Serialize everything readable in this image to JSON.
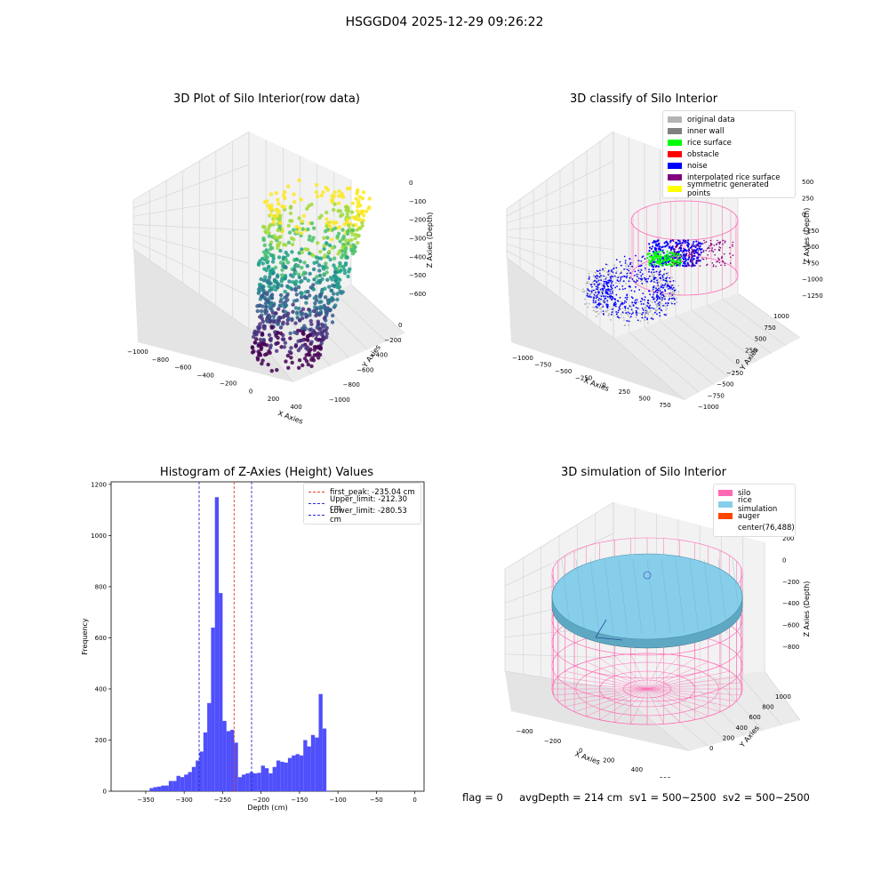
{
  "suptitle": "HSGGD04 2025-12-29 09:26:22",
  "status_text": "flag = 0     avgDepth = 214 cm  sv1 = 500~2500  sv2 = 500~2500",
  "colors": {
    "hist_bar": "#4f4ffb",
    "first_peak": "#e8392b",
    "limit": "#2b2bd6",
    "original": "#b3b3b3",
    "inner_wall": "#808080",
    "rice_surface": "#00ff00",
    "obstacle": "#ff0000",
    "noise": "#0000ff",
    "interp": "#800080",
    "symm": "#ffff00",
    "silo": "#ff69b4",
    "rice_sim": "#87ceeb",
    "auger": "#ff4500"
  },
  "chart_data": [
    {
      "type": "scatter3d",
      "title": "3D Plot of Silo Interior(row data)",
      "xlabel": "X Axies",
      "ylabel": "Y Axies",
      "zlabel": "Z Axies (Depth)",
      "x_ticks": [
        "−1000",
        "−800",
        "−600",
        "−400",
        "−200",
        "0",
        "200",
        "400"
      ],
      "y_ticks": [
        "0",
        "−200",
        "−400",
        "−600",
        "−800",
        "−1000"
      ],
      "z_ticks": [
        "0",
        "−100",
        "−200",
        "−300",
        "−400",
        "−500",
        "−600"
      ],
      "colormap": "viridis"
    },
    {
      "type": "scatter3d",
      "title": "3D classify of Silo Interior",
      "xlabel": "X Axies",
      "ylabel": "Y Axies",
      "zlabel": "Z Axies (Depth)",
      "x_ticks": [
        "−1000",
        "−750",
        "−500",
        "−250",
        "0",
        "250",
        "500",
        "750"
      ],
      "y_ticks": [
        "1000",
        "750",
        "500",
        "250",
        "0",
        "−250",
        "−500",
        "−750",
        "−1000"
      ],
      "z_ticks": [
        "500",
        "250",
        "0",
        "−250",
        "−500",
        "−750",
        "−1000",
        "−1250"
      ],
      "legend": [
        "original data",
        "inner wall",
        "rice surface",
        "obstacle",
        "noise",
        "interpolated rice surface",
        "symmetric generated points"
      ]
    },
    {
      "type": "bar",
      "title": "Histogram of Z-Axies (Height) Values",
      "xlabel": "Depth (cm)",
      "ylabel": "Frequency",
      "xlim": [
        -395,
        12
      ],
      "ylim": [
        0,
        1210
      ],
      "x_ticks": [
        "−350",
        "−300",
        "−250",
        "−200",
        "−150",
        "−100",
        "−50",
        "0"
      ],
      "y_ticks": [
        "0",
        "200",
        "400",
        "600",
        "800",
        "1000",
        "1200"
      ],
      "bin_start": -345,
      "bin_width": 5,
      "values": [
        12,
        16,
        18,
        22,
        22,
        40,
        40,
        60,
        55,
        65,
        75,
        95,
        120,
        155,
        230,
        345,
        640,
        1150,
        775,
        275,
        235,
        240,
        190,
        55,
        65,
        70,
        75,
        70,
        72,
        100,
        90,
        70,
        95,
        120,
        115,
        112,
        130,
        140,
        145,
        140,
        200,
        175,
        220,
        210,
        380,
        245,
        2
      ],
      "lines": [
        {
          "label": "first_peak: -235.04 cm",
          "x": -235.04
        },
        {
          "label": "Upper_limit: -212.30 cm",
          "x": -212.3
        },
        {
          "label": "Lower_limit: -280.53 cm",
          "x": -280.53
        }
      ],
      "legend_position": "top-right"
    },
    {
      "type": "surface3d",
      "title": "3D simulation of Silo Interior",
      "xlabel": "X Axies",
      "ylabel": "Y Axies",
      "zlabel": "Z Axies (Depth)",
      "x_ticks": [
        "−400",
        "−200",
        "0",
        "200",
        "400",
        "600"
      ],
      "y_ticks": [
        "0",
        "200",
        "400",
        "600",
        "800",
        "1000"
      ],
      "z_ticks": [
        "200",
        "0",
        "−200",
        "−400",
        "−600",
        "−800"
      ],
      "legend": [
        "silo",
        "rice simulation",
        "auger",
        "center(76,488)"
      ]
    }
  ]
}
